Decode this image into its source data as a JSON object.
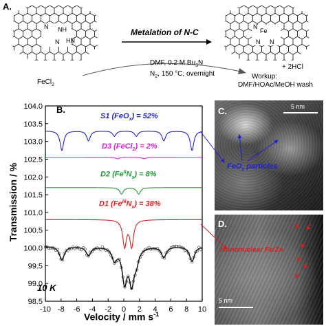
{
  "panel_a": {
    "label": "A.",
    "title": "Metalation of N-C",
    "reagent": "FeCl",
    "reagent_sub": "2",
    "cond1_prefix": "DMF, 0.2 M Bu",
    "cond1_sub": "3",
    "cond1_suffix": "N",
    "cond2_prefix": "N",
    "cond2_sub": "2",
    "cond2_suffix": ", 150 °C, overnight",
    "byproduct": "+ 2HCl",
    "workup1": "Workup:",
    "workup2": "DMF/HOAc/MeOH wash",
    "n_label": "N",
    "nh_label": "NH",
    "hn_label": "HN",
    "fe_label": "Fe"
  },
  "panel_b": {
    "label": "B.",
    "temperature": "10 K",
    "colors": {
      "S1": "#1f1fd6",
      "D3": "#d61fd6",
      "D2": "#1f9a3a",
      "D1": "#d61f1f",
      "fit": "#000000"
    }
  },
  "panel_c": {
    "label": "C.",
    "scale": "5 nm",
    "annotation": "FeO",
    "annotation_sub": "x",
    "annotation_suffix": " particles"
  },
  "panel_d": {
    "label": "D.",
    "scale": "5 nm",
    "annotation": "Mononuclear Fe/Zn"
  },
  "chart_data": {
    "type": "line",
    "xlabel": "Velocity / mm s",
    "xlabel_sup": "-1",
    "ylabel": "Transmission / %",
    "xlim": [
      -10,
      10
    ],
    "ylim": [
      98.5,
      104.0
    ],
    "xticks": [
      "-10",
      "-8",
      "-6",
      "-4",
      "-2",
      "0",
      "2",
      "4",
      "6",
      "8",
      "10"
    ],
    "yticks": [
      "98.5",
      "99.0",
      "99.5",
      "100.0",
      "100.5",
      "101.0",
      "101.5",
      "102.0",
      "102.5",
      "103.0",
      "103.5",
      "104.0"
    ],
    "series": [
      {
        "name": "S1 (FeOx) = 52%",
        "label_main": "S1 (FeO",
        "label_sub": "x",
        "label_tail": ") = 52%",
        "baseline": 103.3,
        "type": "sextet",
        "lines": [
          -7.9,
          -4.5,
          -1.2,
          1.6,
          5.1,
          8.7
        ],
        "depth": [
          0.55,
          0.28,
          0.15,
          0.15,
          0.28,
          0.55
        ]
      },
      {
        "name": "D3 (FeCl2) = 2%",
        "label_main": "D3 (FeCl",
        "label_sub": "2",
        "label_tail": ") = 2%",
        "baseline": 102.55,
        "type": "doublet",
        "lines": [
          -0.8,
          2.6
        ],
        "depth": [
          0.04,
          0.04
        ]
      },
      {
        "name": "D2 (FeIINx) = 8%",
        "label_main": "D2 (Fe",
        "label_sup": "II",
        "label_mid": "N",
        "label_sub": "x",
        "label_tail": ") = 8%",
        "baseline": 101.7,
        "type": "doublet",
        "lines": [
          -0.3,
          1.9
        ],
        "depth": [
          0.18,
          0.18
        ]
      },
      {
        "name": "D1 (FeIIINx) = 38%",
        "label_main": "D1 (Fe",
        "label_sup": "III",
        "label_mid": "N",
        "label_sub": "x",
        "label_tail": ") = 38%",
        "baseline": 100.8,
        "type": "doublet",
        "lines": [
          0.1,
          1.0
        ],
        "depth": [
          0.75,
          0.75
        ]
      }
    ],
    "measured": {
      "baseline": 100.05,
      "lines": [
        -7.9,
        -4.5,
        -1.2,
        0.1,
        1.0,
        1.6,
        5.1,
        8.7
      ],
      "depth": [
        0.38,
        0.25,
        0.35,
        0.95,
        0.95,
        0.35,
        0.3,
        0.42
      ]
    }
  }
}
